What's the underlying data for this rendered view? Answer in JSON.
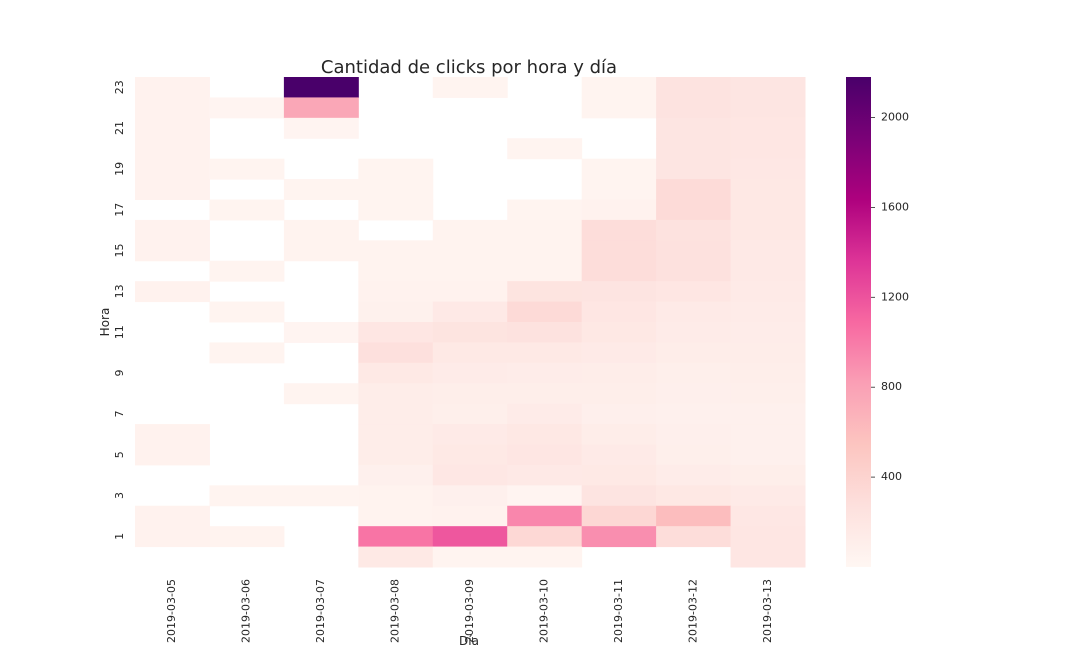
{
  "chart_data": {
    "type": "heatmap",
    "title": "Cantidad de clicks por hora y día",
    "xlabel": "Día",
    "ylabel": "Hora",
    "x_categories": [
      "2019-03-05",
      "2019-03-06",
      "2019-03-07",
      "2019-03-08",
      "2019-03-09",
      "2019-03-10",
      "2019-03-11",
      "2019-03-12",
      "2019-03-13"
    ],
    "y_categories": [
      23,
      22,
      21,
      20,
      19,
      18,
      17,
      16,
      15,
      14,
      13,
      12,
      11,
      10,
      9,
      8,
      7,
      6,
      5,
      4,
      3,
      2,
      1,
      0
    ],
    "y_tick_labels": [
      "23",
      "",
      "21",
      "",
      "19",
      "",
      "17",
      "",
      "15",
      "",
      "13",
      "",
      "11",
      "",
      "9",
      "",
      "7",
      "",
      "5",
      "",
      "3",
      "",
      "1",
      ""
    ],
    "values": [
      [
        60,
        null,
        2180,
        null,
        40,
        null,
        40,
        240,
        210
      ],
      [
        60,
        30,
        760,
        null,
        null,
        null,
        40,
        240,
        210
      ],
      [
        60,
        null,
        30,
        null,
        null,
        null,
        null,
        210,
        200
      ],
      [
        60,
        null,
        null,
        null,
        null,
        40,
        null,
        210,
        200
      ],
      [
        60,
        40,
        null,
        40,
        null,
        null,
        40,
        210,
        190
      ],
      [
        60,
        null,
        40,
        40,
        null,
        null,
        40,
        320,
        180
      ],
      [
        null,
        40,
        null,
        40,
        null,
        40,
        60,
        320,
        180
      ],
      [
        60,
        null,
        50,
        null,
        50,
        50,
        300,
        250,
        180
      ],
      [
        60,
        null,
        50,
        50,
        50,
        50,
        300,
        260,
        160
      ],
      [
        null,
        40,
        null,
        50,
        50,
        50,
        300,
        260,
        160
      ],
      [
        60,
        null,
        null,
        60,
        60,
        230,
        220,
        200,
        150
      ],
      [
        null,
        40,
        null,
        70,
        160,
        330,
        200,
        150,
        140
      ],
      [
        null,
        null,
        30,
        200,
        230,
        250,
        180,
        140,
        130
      ],
      [
        null,
        40,
        null,
        270,
        170,
        170,
        150,
        120,
        120
      ],
      [
        null,
        null,
        null,
        170,
        140,
        130,
        120,
        100,
        110
      ],
      [
        null,
        null,
        40,
        120,
        110,
        110,
        110,
        90,
        100
      ],
      [
        null,
        null,
        null,
        120,
        100,
        140,
        90,
        80,
        80
      ],
      [
        60,
        null,
        null,
        120,
        150,
        180,
        120,
        90,
        80
      ],
      [
        60,
        null,
        null,
        120,
        170,
        200,
        150,
        100,
        80
      ],
      [
        null,
        null,
        null,
        80,
        190,
        160,
        170,
        130,
        110
      ],
      [
        null,
        40,
        40,
        50,
        80,
        30,
        220,
        180,
        150
      ],
      [
        60,
        null,
        null,
        50,
        60,
        940,
        360,
        600,
        190
      ],
      [
        60,
        50,
        null,
        1030,
        1180,
        350,
        900,
        300,
        200
      ],
      [
        null,
        null,
        null,
        170,
        40,
        40,
        null,
        null,
        200
      ]
    ],
    "colorbar": {
      "min": 0,
      "max": 2180,
      "ticks": [
        400,
        800,
        1200,
        1600,
        2000
      ]
    },
    "colormap": [
      "#fff7f3",
      "#fde0dd",
      "#fcc5c0",
      "#fa9fb5",
      "#f768a1",
      "#dd3497",
      "#ae017e",
      "#7a0177",
      "#49006a"
    ],
    "grid": false
  }
}
